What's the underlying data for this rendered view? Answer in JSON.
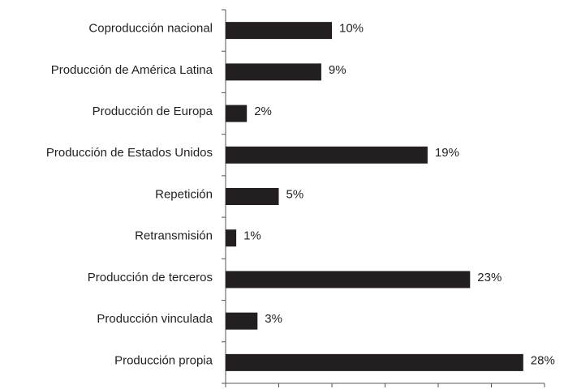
{
  "chart_data": {
    "type": "barh",
    "categories": [
      "Coproducción nacional",
      "Producción de América Latina",
      "Producción de Europa",
      "Producción de Estados Unidos",
      "Repetición",
      "Retransmisión",
      "Producción de terceros",
      "Producción vinculada",
      "Producción propia"
    ],
    "values": [
      10,
      9,
      2,
      19,
      5,
      1,
      23,
      3,
      28
    ],
    "value_labels": [
      "10%",
      "9%",
      "2%",
      "19%",
      "5%",
      "1%",
      "23%",
      "3%",
      "28%"
    ],
    "color": "#231f20",
    "xlim": [
      0,
      30
    ],
    "xticks": [
      0,
      5,
      10,
      15,
      20,
      25,
      30
    ],
    "grid": false
  }
}
